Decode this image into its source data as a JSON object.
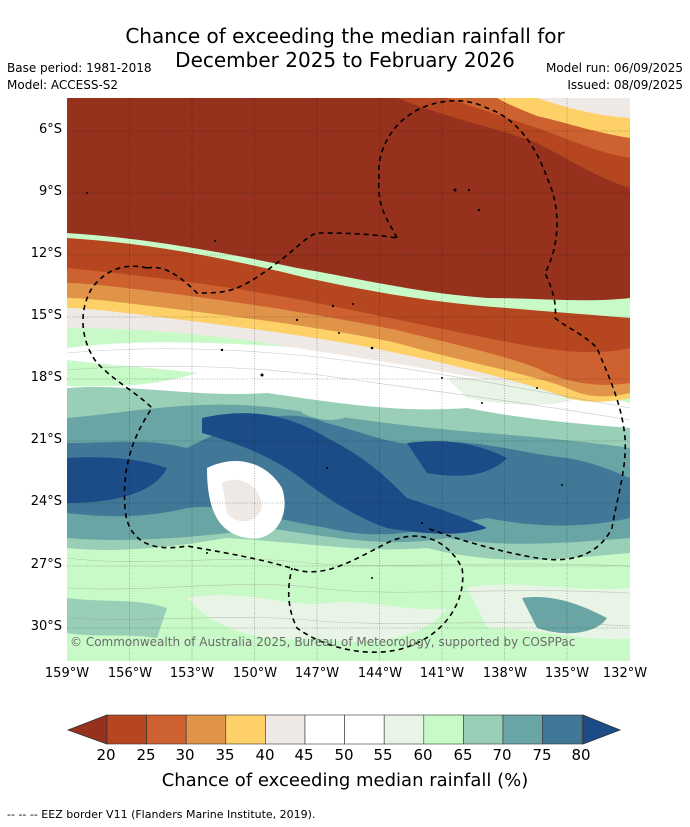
{
  "header": {
    "title_line1": "Chance of exceeding the median rainfall for",
    "title_line2": "December 2025 to February 2026",
    "base_period": "Base period: 1981-2018",
    "model": "Model: ACCESS-S2",
    "model_run": "Model run: 06/09/2025",
    "issued": "Issued: 08/09/2025"
  },
  "map": {
    "lat_labels": [
      "6°S",
      "9°S",
      "12°S",
      "15°S",
      "18°S",
      "21°S",
      "24°S",
      "27°S",
      "30°S"
    ],
    "lon_labels": [
      "159°W",
      "156°W",
      "153°W",
      "150°W",
      "147°W",
      "144°W",
      "141°W",
      "138°W",
      "135°W",
      "132°W"
    ],
    "copyright": "© Commonwealth of Australia 2025, Bureau of Meteorology, supported by COSPPac"
  },
  "colorbar": {
    "ticks": [
      "20",
      "25",
      "30",
      "35",
      "40",
      "45",
      "50",
      "55",
      "60",
      "65",
      "70",
      "75",
      "80"
    ],
    "colors": [
      "#96311e",
      "#b5461f",
      "#cd6230",
      "#e0944a",
      "#fdd068",
      "#efe9e6",
      "#ffffff",
      "#ffffff",
      "#e8f4e6",
      "#c8fac8",
      "#99cfb6",
      "#6aa5a5",
      "#417898",
      "#1c4c88"
    ],
    "label": "Chance of exceeding median rainfall (%)"
  },
  "footer": {
    "eez_note": "--  --  -- EEZ border V11 (Flanders Marine Institute, 2019)."
  }
}
